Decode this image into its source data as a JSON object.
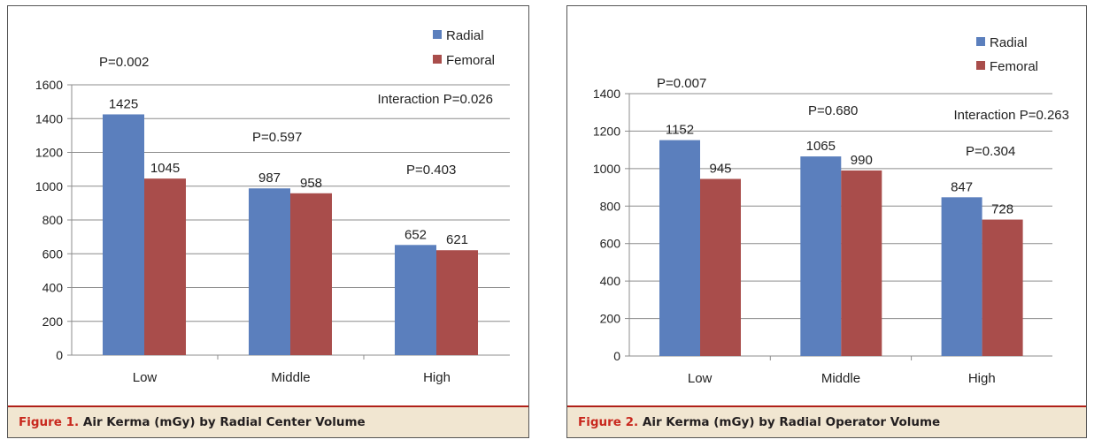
{
  "colors": {
    "radial": "#5b7fbd",
    "femoral": "#a94d4b",
    "grid": "#8c8c8c",
    "caption_bg": "#f1e6d1",
    "caption_accent": "#c8281e"
  },
  "figures": [
    {
      "caption_num": "Figure 1.",
      "caption_text": "Air Kerma (mGy) by Radial Center Volume"
    },
    {
      "caption_num": "Figure 2.",
      "caption_text": "Air Kerma (mGy) by Radial Operator Volume"
    }
  ],
  "chart_data": [
    {
      "type": "bar",
      "categories": [
        "Low",
        "Middle",
        "High"
      ],
      "series": [
        {
          "name": "Radial",
          "values": [
            1425,
            987,
            652
          ]
        },
        {
          "name": "Femoral",
          "values": [
            1045,
            958,
            621
          ]
        }
      ],
      "ylim": [
        0,
        1600
      ],
      "yticks": [
        "0",
        "200",
        "400",
        "600",
        "800",
        "1000",
        "1200",
        "1400",
        "1600"
      ],
      "annotations": [
        "P=0.002",
        "P=0.597",
        "P=0.403",
        "Interaction P=0.026"
      ],
      "legend": "top-right",
      "grid": true
    },
    {
      "type": "bar",
      "categories": [
        "Low",
        "Middle",
        "High"
      ],
      "series": [
        {
          "name": "Radial",
          "values": [
            1152,
            1065,
            847
          ]
        },
        {
          "name": "Femoral",
          "values": [
            945,
            990,
            728
          ]
        }
      ],
      "ylim": [
        0,
        1400
      ],
      "yticks": [
        "0",
        "200",
        "400",
        "600",
        "800",
        "1000",
        "1200",
        "1400"
      ],
      "annotations": [
        "P=0.007",
        "P=0.680",
        "P=0.304",
        "Interaction P=0.263"
      ],
      "legend": "top-right",
      "grid": true
    }
  ]
}
